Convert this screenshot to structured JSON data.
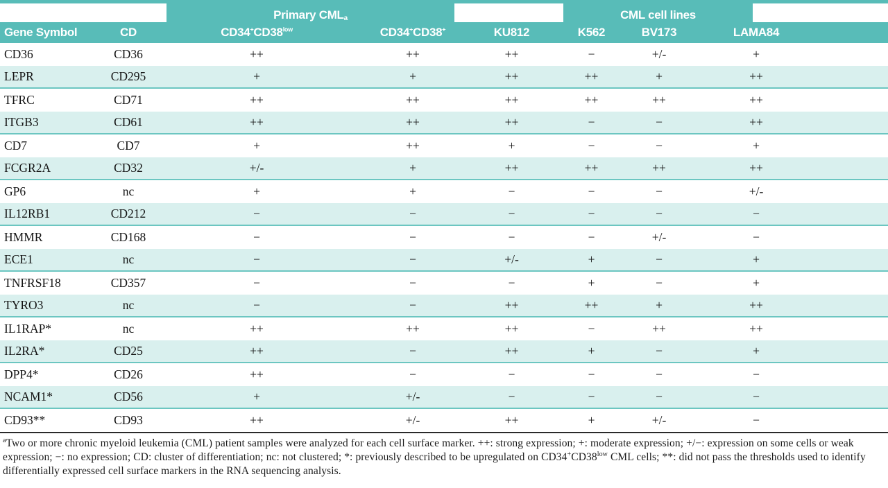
{
  "colors": {
    "teal": "#58bcb8",
    "row_tint": "#d9f0ee",
    "rule": "#6cc6c1"
  },
  "table": {
    "group_headers": [
      {
        "label": "Primary CML",
        "sup": "a"
      },
      {
        "label": "CML cell lines"
      }
    ],
    "columns": [
      {
        "label": "Gene Symbol"
      },
      {
        "label": "CD"
      },
      {
        "parts": [
          {
            "t": "CD34"
          },
          {
            "t": "+",
            "sup": true
          },
          {
            "t": "CD38"
          },
          {
            "t": "low",
            "sup": true
          }
        ]
      },
      {
        "parts": [
          {
            "t": "CD34"
          },
          {
            "t": "+",
            "sup": true
          },
          {
            "t": "CD38"
          },
          {
            "t": "+",
            "sup": true
          }
        ]
      },
      {
        "label": "KU812"
      },
      {
        "label": "K562"
      },
      {
        "label": "BV173"
      },
      {
        "label": "LAMA84"
      }
    ],
    "rows": [
      {
        "gene": "CD36",
        "cd": "CD36",
        "values": [
          "++",
          "++",
          "++",
          "−",
          "+/-",
          "+"
        ]
      },
      {
        "gene": "LEPR",
        "cd": "CD295",
        "values": [
          "+",
          "+",
          "++",
          "++",
          "+",
          "++"
        ]
      },
      {
        "gene": "TFRC",
        "cd": "CD71",
        "values": [
          "++",
          "++",
          "++",
          "++",
          "++",
          "++"
        ]
      },
      {
        "gene": "ITGB3",
        "cd": "CD61",
        "values": [
          "++",
          "++",
          "++",
          "−",
          "−",
          "++"
        ]
      },
      {
        "gene": "CD7",
        "cd": "CD7",
        "values": [
          "+",
          "++",
          "+",
          "−",
          "−",
          "+"
        ]
      },
      {
        "gene": "FCGR2A",
        "cd": "CD32",
        "values": [
          "+/-",
          "+",
          "++",
          "++",
          "++",
          "++"
        ]
      },
      {
        "gene": "GP6",
        "cd": "nc",
        "values": [
          "+",
          "+",
          "−",
          "−",
          "−",
          "+/-"
        ]
      },
      {
        "gene": "IL12RB1",
        "cd": "CD212",
        "values": [
          "−",
          "−",
          "−",
          "−",
          "−",
          "−"
        ]
      },
      {
        "gene": "HMMR",
        "cd": "CD168",
        "values": [
          "−",
          "−",
          "−",
          "−",
          "+/-",
          "−"
        ]
      },
      {
        "gene": "ECE1",
        "cd": "nc",
        "values": [
          "−",
          "−",
          "+/-",
          "+",
          "−",
          "+"
        ]
      },
      {
        "gene": "TNFRSF18",
        "cd": "CD357",
        "values": [
          "−",
          "−",
          "−",
          "+",
          "−",
          "+"
        ]
      },
      {
        "gene": "TYRO3",
        "cd": "nc",
        "values": [
          "−",
          "−",
          "++",
          "++",
          "+",
          "++"
        ]
      },
      {
        "gene": "IL1RAP*",
        "cd": "nc",
        "values": [
          "++",
          "++",
          "++",
          "−",
          "++",
          "++"
        ]
      },
      {
        "gene": "IL2RA*",
        "cd": "CD25",
        "values": [
          "++",
          "−",
          "++",
          "+",
          "−",
          "+"
        ]
      },
      {
        "gene": "DPP4*",
        "cd": "CD26",
        "values": [
          "++",
          "−",
          "−",
          "−",
          "−",
          "−"
        ]
      },
      {
        "gene": "NCAM1*",
        "cd": "CD56",
        "values": [
          "+",
          "+/-",
          "−",
          "−",
          "−",
          "−"
        ]
      },
      {
        "gene": "CD93**",
        "cd": "CD93",
        "values": [
          "++",
          "+/-",
          "++",
          "+",
          "+/-",
          "−"
        ]
      }
    ]
  },
  "footnote": {
    "sup_a": "a",
    "p1": "Two or more chronic myeloid leukemia (CML) patient samples were analyzed for each cell surface marker. ++: strong expression; +: moderate expression; +/−: expression on some cells or weak expression; −: no expression; CD: cluster of differentiation; nc: not clustered; *: previously described to be upregulated on CD34",
    "sup_plus": "+",
    "p2": "CD38",
    "sup_low": "low",
    "p3": " CML cells; **: did not pass the thresholds used to identify differentially expressed cell surface markers in the RNA sequencing analysis."
  }
}
